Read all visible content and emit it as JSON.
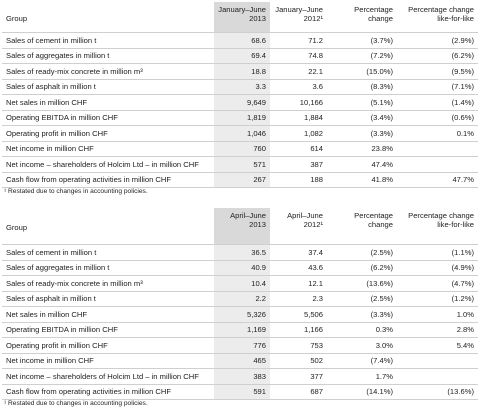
{
  "tables": [
    {
      "header": [
        "Group",
        "January–June 2013",
        "January–June 2012¹",
        "Percentage change",
        "Percentage change like-for-like"
      ],
      "rows": [
        [
          "Sales of cement in million t",
          "68.6",
          "71.2",
          "(3.7%)",
          "(2.9%)"
        ],
        [
          "Sales of aggregates in million t",
          "69.4",
          "74.8",
          "(7.2%)",
          "(6.2%)"
        ],
        [
          "Sales of ready-mix concrete in million m³",
          "18.8",
          "22.1",
          "(15.0%)",
          "(9.5%)"
        ],
        [
          "Sales of asphalt in million t",
          "3.3",
          "3.6",
          "(8.3%)",
          "(7.1%)"
        ],
        [
          "Net sales in million CHF",
          "9,649",
          "10,166",
          "(5.1%)",
          "(1.4%)"
        ],
        [
          "Operating EBITDA in million CHF",
          "1,819",
          "1,884",
          "(3.4%)",
          "(0.6%)"
        ],
        [
          "Operating profit in million CHF",
          "1,046",
          "1,082",
          "(3.3%)",
          "0.1%"
        ],
        [
          "Net income in million CHF",
          "760",
          "614",
          "23.8%",
          ""
        ],
        [
          "Net income – shareholders of Holcim Ltd – in million CHF",
          "571",
          "387",
          "47.4%",
          ""
        ],
        [
          "Cash flow from operating activities in million CHF",
          "267",
          "188",
          "41.8%",
          "47.7%"
        ]
      ],
      "footnote": "¹ Restated due to changes in accounting policies."
    },
    {
      "header": [
        "Group",
        "April–June 2013",
        "April–June 2012¹",
        "Percentage change",
        "Percentage change like-for-like"
      ],
      "rows": [
        [
          "Sales of cement in million t",
          "36.5",
          "37.4",
          "(2.5%)",
          "(1.1%)"
        ],
        [
          "Sales of aggregates in million t",
          "40.9",
          "43.6",
          "(6.2%)",
          "(4.9%)"
        ],
        [
          "Sales of ready-mix concrete in million m³",
          "10.4",
          "12.1",
          "(13.6%)",
          "(4.7%)"
        ],
        [
          "Sales of asphalt in million t",
          "2.2",
          "2.3",
          "(2.5%)",
          "(1.2%)"
        ],
        [
          "Net sales in million CHF",
          "5,326",
          "5,506",
          "(3.3%)",
          "1.0%"
        ],
        [
          "Operating EBITDA in million CHF",
          "1,169",
          "1,166",
          "0.3%",
          "2.8%"
        ],
        [
          "Operating profit in million CHF",
          "776",
          "753",
          "3.0%",
          "5.4%"
        ],
        [
          "Net income in million CHF",
          "465",
          "502",
          "(7.4%)",
          ""
        ],
        [
          "Net income – shareholders of Holcim Ltd – in million CHF",
          "383",
          "377",
          "1.7%",
          ""
        ],
        [
          "Cash flow from operating activities in million CHF",
          "591",
          "687",
          "(14.1%)",
          "(13.6%)"
        ]
      ],
      "footnote": "¹ Restated due to changes in accounting policies."
    }
  ]
}
